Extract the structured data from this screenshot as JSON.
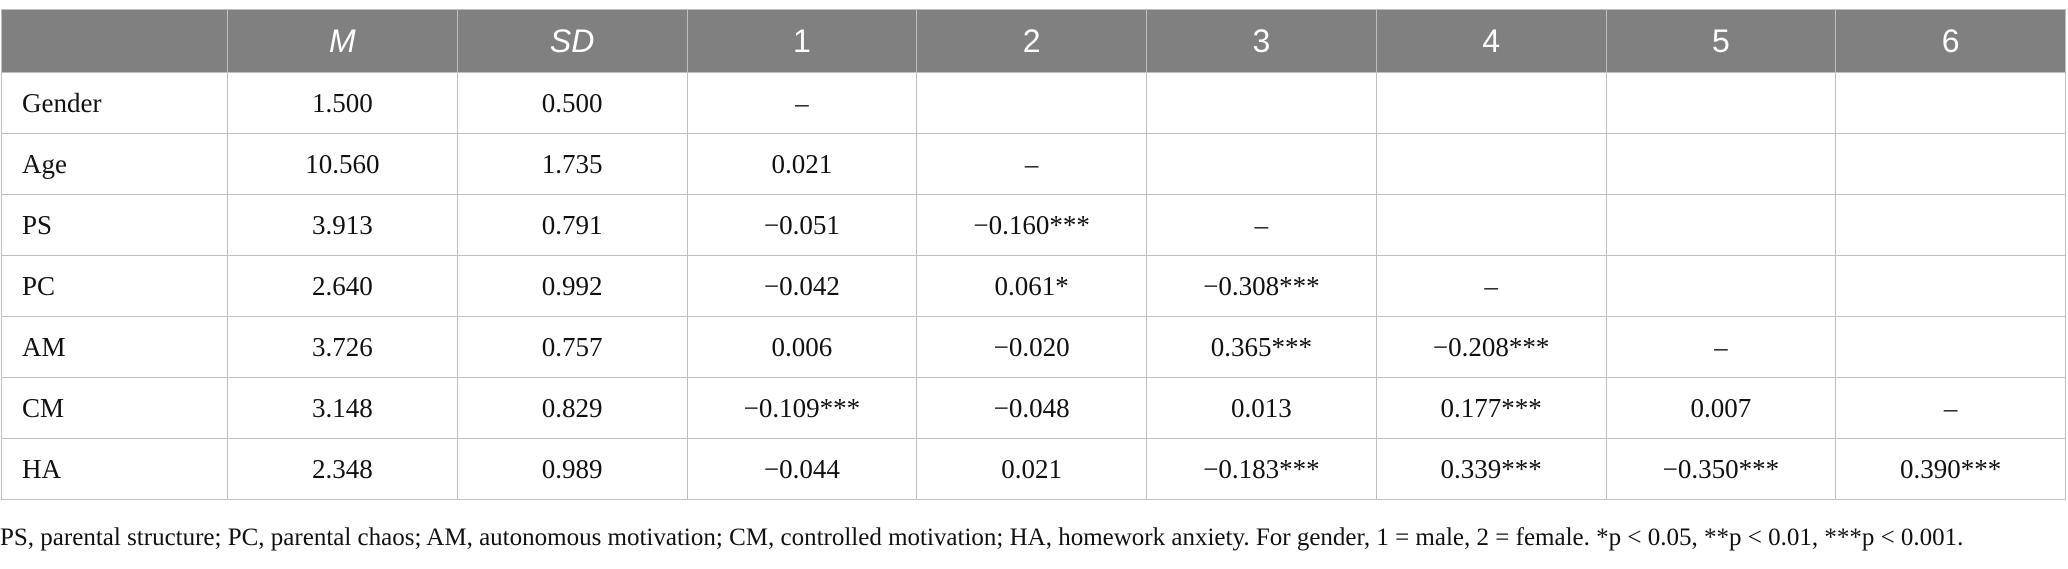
{
  "table": {
    "headers": [
      "",
      "M",
      "SD",
      "1",
      "2",
      "3",
      "4",
      "5",
      "6"
    ],
    "rows": [
      {
        "label": "Gender",
        "cells": [
          "1.500",
          "0.500",
          "–",
          "",
          "",
          "",
          "",
          ""
        ]
      },
      {
        "label": "Age",
        "cells": [
          "10.560",
          "1.735",
          "0.021",
          "–",
          "",
          "",
          "",
          ""
        ]
      },
      {
        "label": "PS",
        "cells": [
          "3.913",
          "0.791",
          "−0.051",
          "−0.160***",
          "–",
          "",
          "",
          ""
        ]
      },
      {
        "label": "PC",
        "cells": [
          "2.640",
          "0.992",
          "−0.042",
          "0.061*",
          "−0.308***",
          "–",
          "",
          ""
        ]
      },
      {
        "label": "AM",
        "cells": [
          "3.726",
          "0.757",
          "0.006",
          "−0.020",
          "0.365***",
          "−0.208***",
          "–",
          ""
        ]
      },
      {
        "label": "CM",
        "cells": [
          "3.148",
          "0.829",
          "−0.109***",
          "−0.048",
          "0.013",
          "0.177***",
          "0.007",
          "–"
        ]
      },
      {
        "label": "HA",
        "cells": [
          "2.348",
          "0.989",
          "−0.044",
          "0.021",
          "−0.183***",
          "0.339***",
          "−0.350***",
          "0.390***"
        ]
      }
    ]
  },
  "note": "PS, parental structure; PC, parental chaos; AM, autonomous motivation; CM, controlled motivation; HA, homework anxiety. For gender, 1 = male, 2 = female. *p < 0.05, **p < 0.01, ***p < 0.001."
}
